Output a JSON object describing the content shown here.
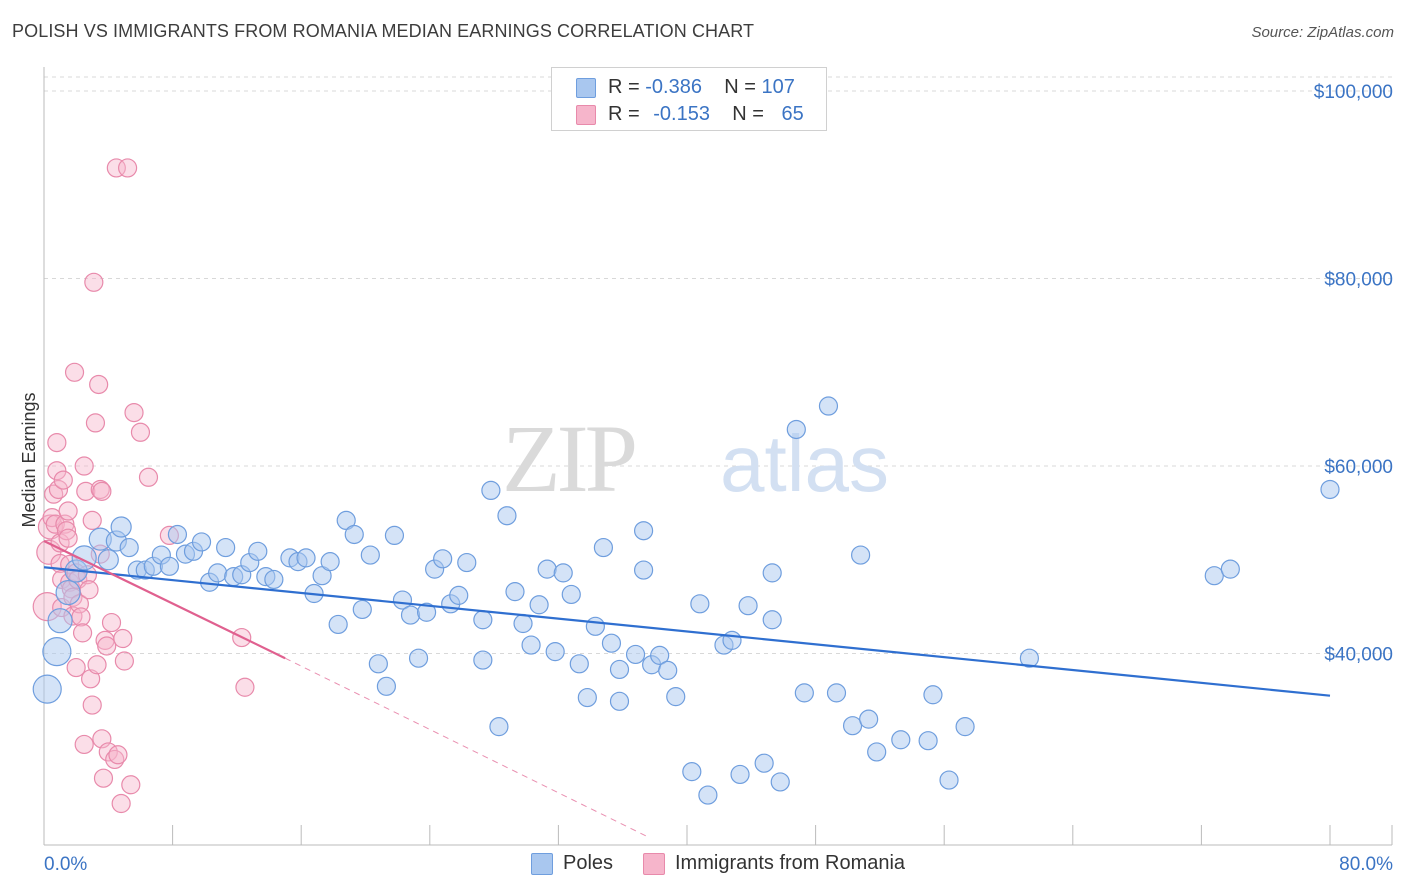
{
  "header": {
    "title": "POLISH VS IMMIGRANTS FROM ROMANIA MEDIAN EARNINGS CORRELATION CHART",
    "source": "Source: ZipAtlas.com"
  },
  "legend": {
    "rows": [
      {
        "r_label": "R =",
        "r_value": "-0.386",
        "n_label": "N =",
        "n_value": "107"
      },
      {
        "r_label": "R =",
        "r_value": "-0.153",
        "n_label": "N =",
        "n_value": "65"
      }
    ]
  },
  "colors": {
    "blue_fill": "#a9c7ef",
    "blue_stroke": "#6f9ede",
    "blue_line": "#2f6fd0",
    "pink_fill": "#f6b5cb",
    "pink_stroke": "#e88aab",
    "pink_line": "#e0608f",
    "axis_text_blue": "#3b74c4",
    "grid": "#d8d8d8"
  },
  "chart_data": {
    "type": "scatter",
    "title": "POLISH VS IMMIGRANTS FROM ROMANIA MEDIAN EARNINGS CORRELATION CHART",
    "xlabel": "",
    "ylabel": "Median Earnings",
    "xlim": [
      0,
      80
    ],
    "ylim": [
      20000,
      101500
    ],
    "x_tick_labels": [
      "0.0%",
      "80.0%"
    ],
    "y_ticks": [
      40000,
      60000,
      80000,
      100000
    ],
    "y_tick_labels": [
      "$40,000",
      "$60,000",
      "$80,000",
      "$100,000"
    ],
    "grid": true,
    "legend_position": "top-center",
    "watermark": "ZIPatlas",
    "series": [
      {
        "name": "Poles",
        "color": "#a9c7ef",
        "trend": {
          "x": [
            0,
            80
          ],
          "y": [
            49200,
            35500
          ]
        },
        "points": [
          [
            0.2,
            36200,
            14
          ],
          [
            0.8,
            40200,
            14
          ],
          [
            1.0,
            43500,
            12
          ],
          [
            1.5,
            46500,
            12
          ],
          [
            2.0,
            48800,
            11
          ],
          [
            2.5,
            50200,
            12
          ],
          [
            3.5,
            52200,
            11
          ],
          [
            4.0,
            50000,
            10
          ],
          [
            4.5,
            52000,
            10
          ],
          [
            4.8,
            53500,
            10
          ],
          [
            5.3,
            51300,
            9
          ],
          [
            5.8,
            48900,
            9
          ],
          [
            6.3,
            48900,
            9
          ],
          [
            6.8,
            49300,
            9
          ],
          [
            7.3,
            50500,
            9
          ],
          [
            7.8,
            49300,
            9
          ],
          [
            8.3,
            52700,
            9
          ],
          [
            8.8,
            50600,
            9
          ],
          [
            9.3,
            50900,
            9
          ],
          [
            9.8,
            51900,
            9
          ],
          [
            10.3,
            47600,
            9
          ],
          [
            10.8,
            48600,
            9
          ],
          [
            11.3,
            51300,
            9
          ],
          [
            11.8,
            48200,
            9
          ],
          [
            12.3,
            48400,
            9
          ],
          [
            12.8,
            49700,
            9
          ],
          [
            13.3,
            50900,
            9
          ],
          [
            13.8,
            48200,
            9
          ],
          [
            14.3,
            47900,
            9
          ],
          [
            15.3,
            50200,
            9
          ],
          [
            15.8,
            49800,
            9
          ],
          [
            16.3,
            50200,
            9
          ],
          [
            16.8,
            46400,
            9
          ],
          [
            17.3,
            48300,
            9
          ],
          [
            17.8,
            49800,
            9
          ],
          [
            18.3,
            43100,
            9
          ],
          [
            18.8,
            54200,
            9
          ],
          [
            19.3,
            52700,
            9
          ],
          [
            19.8,
            44700,
            9
          ],
          [
            20.3,
            50500,
            9
          ],
          [
            20.8,
            38900,
            9
          ],
          [
            21.3,
            36500,
            9
          ],
          [
            21.8,
            52600,
            9
          ],
          [
            22.3,
            45700,
            9
          ],
          [
            22.8,
            44100,
            9
          ],
          [
            23.3,
            39500,
            9
          ],
          [
            23.8,
            44400,
            9
          ],
          [
            24.3,
            49000,
            9
          ],
          [
            24.8,
            50100,
            9
          ],
          [
            25.3,
            45300,
            9
          ],
          [
            25.8,
            46200,
            9
          ],
          [
            26.3,
            49700,
            9
          ],
          [
            27.3,
            43600,
            9
          ],
          [
            27.3,
            39300,
            9
          ],
          [
            27.8,
            57400,
            9
          ],
          [
            28.3,
            32200,
            9
          ],
          [
            28.8,
            54700,
            9
          ],
          [
            29.3,
            46600,
            9
          ],
          [
            29.8,
            43200,
            9
          ],
          [
            30.3,
            40900,
            9
          ],
          [
            30.8,
            45200,
            9
          ],
          [
            31.3,
            49000,
            9
          ],
          [
            31.8,
            40200,
            9
          ],
          [
            32.3,
            48600,
            9
          ],
          [
            32.8,
            46300,
            9
          ],
          [
            33.3,
            38900,
            9
          ],
          [
            33.8,
            35300,
            9
          ],
          [
            34.3,
            42900,
            9
          ],
          [
            34.8,
            51300,
            9
          ],
          [
            35.3,
            41100,
            9
          ],
          [
            35.8,
            38300,
            9
          ],
          [
            35.8,
            34900,
            9
          ],
          [
            36.8,
            39900,
            9
          ],
          [
            37.3,
            53100,
            9
          ],
          [
            37.3,
            48900,
            9
          ],
          [
            37.8,
            38800,
            9
          ],
          [
            38.3,
            39800,
            9
          ],
          [
            38.8,
            38200,
            9
          ],
          [
            39.3,
            35400,
            9
          ],
          [
            40.3,
            27400,
            9
          ],
          [
            40.8,
            45300,
            9
          ],
          [
            41.3,
            24900,
            9
          ],
          [
            42.3,
            40900,
            9
          ],
          [
            42.8,
            41400,
            9
          ],
          [
            43.3,
            27100,
            9
          ],
          [
            43.8,
            45100,
            9
          ],
          [
            44.8,
            28300,
            9
          ],
          [
            45.3,
            48600,
            9
          ],
          [
            45.3,
            43600,
            9
          ],
          [
            45.8,
            26300,
            9
          ],
          [
            46.8,
            63900,
            9
          ],
          [
            47.3,
            35800,
            9
          ],
          [
            48.8,
            66400,
            9
          ],
          [
            49.3,
            35800,
            9
          ],
          [
            50.3,
            32300,
            9
          ],
          [
            50.8,
            50500,
            9
          ],
          [
            51.3,
            33000,
            9
          ],
          [
            51.8,
            29500,
            9
          ],
          [
            53.3,
            30800,
            9
          ],
          [
            55.0,
            30700,
            9
          ],
          [
            55.3,
            35600,
            9
          ],
          [
            56.3,
            26500,
            9
          ],
          [
            57.3,
            32200,
            9
          ],
          [
            61.3,
            39500,
            9
          ],
          [
            72.8,
            48300,
            9
          ],
          [
            73.8,
            49000,
            9
          ],
          [
            80.0,
            57500,
            9
          ]
        ]
      },
      {
        "name": "Immigrants from Romania",
        "color": "#f6b5cb",
        "trend": {
          "x": [
            0,
            15
          ],
          "y": [
            52000,
            39500
          ]
        },
        "trend_dashed": {
          "x": [
            15,
            37.5
          ],
          "y": [
            39500,
            20500
          ]
        },
        "points": [
          [
            0.2,
            45000,
            14
          ],
          [
            0.3,
            50800,
            12
          ],
          [
            0.4,
            53500,
            12
          ],
          [
            0.5,
            54500,
            9
          ],
          [
            0.6,
            57000,
            9
          ],
          [
            0.7,
            53800,
            9
          ],
          [
            0.8,
            62500,
            9
          ],
          [
            0.8,
            59500,
            9
          ],
          [
            0.9,
            57500,
            9
          ],
          [
            1.0,
            51800,
            9
          ],
          [
            1.0,
            49600,
            9
          ],
          [
            1.1,
            47900,
            9
          ],
          [
            1.1,
            44900,
            9
          ],
          [
            1.2,
            58500,
            9
          ],
          [
            1.3,
            53800,
            9
          ],
          [
            1.4,
            53100,
            9
          ],
          [
            1.5,
            52300,
            9
          ],
          [
            1.6,
            49500,
            9
          ],
          [
            1.6,
            47600,
            9
          ],
          [
            1.7,
            46900,
            9
          ],
          [
            1.8,
            46000,
            9
          ],
          [
            1.8,
            44000,
            9
          ],
          [
            1.9,
            70000,
            9
          ],
          [
            2.0,
            48600,
            9
          ],
          [
            2.1,
            47900,
            9
          ],
          [
            2.2,
            45300,
            9
          ],
          [
            2.3,
            43900,
            9
          ],
          [
            2.4,
            42200,
            9
          ],
          [
            2.5,
            60000,
            9
          ],
          [
            2.6,
            57300,
            9
          ],
          [
            2.7,
            48400,
            9
          ],
          [
            2.8,
            46800,
            9
          ],
          [
            2.9,
            37300,
            9
          ],
          [
            3.0,
            34500,
            9
          ],
          [
            3.1,
            79600,
            9
          ],
          [
            3.2,
            64600,
            9
          ],
          [
            3.3,
            38800,
            9
          ],
          [
            3.4,
            68700,
            9
          ],
          [
            3.5,
            57500,
            9
          ],
          [
            3.6,
            57300,
            9
          ],
          [
            3.6,
            30900,
            9
          ],
          [
            3.7,
            26700,
            9
          ],
          [
            3.8,
            41400,
            9
          ],
          [
            3.9,
            40800,
            9
          ],
          [
            4.0,
            29500,
            9
          ],
          [
            4.2,
            43300,
            9
          ],
          [
            4.4,
            28700,
            9
          ],
          [
            4.5,
            91800,
            9
          ],
          [
            4.6,
            29200,
            9
          ],
          [
            4.8,
            24000,
            9
          ],
          [
            4.9,
            41600,
            9
          ],
          [
            5.0,
            39200,
            9
          ],
          [
            5.2,
            91800,
            9
          ],
          [
            5.4,
            26000,
            9
          ],
          [
            5.6,
            65700,
            9
          ],
          [
            6.0,
            63600,
            9
          ],
          [
            6.5,
            58800,
            9
          ],
          [
            7.8,
            52600,
            9
          ],
          [
            12.3,
            41700,
            9
          ],
          [
            12.5,
            36400,
            9
          ],
          [
            1.5,
            55200,
            9
          ],
          [
            2.0,
            38500,
            9
          ],
          [
            2.5,
            30300,
            9
          ],
          [
            3.0,
            54200,
            9
          ],
          [
            3.5,
            50600,
            9
          ]
        ]
      }
    ]
  },
  "bottom_legend": {
    "items": [
      {
        "label": "Poles"
      },
      {
        "label": "Immigrants from Romania"
      }
    ]
  }
}
